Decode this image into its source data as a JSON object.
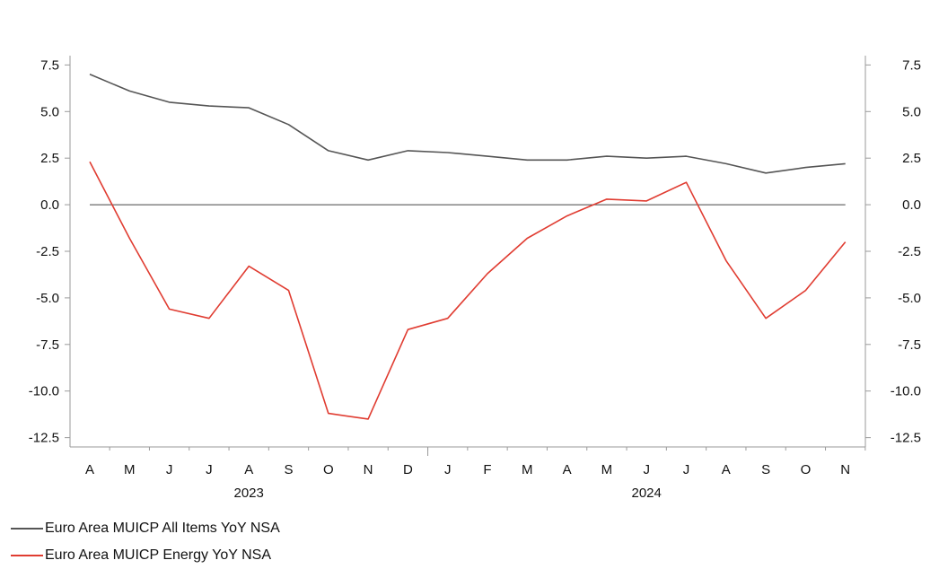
{
  "chart_data": {
    "type": "line",
    "x": [
      "A",
      "M",
      "J",
      "J",
      "A",
      "S",
      "O",
      "N",
      "D",
      "J",
      "F",
      "M",
      "A",
      "M",
      "J",
      "J",
      "A",
      "S",
      "O",
      "N"
    ],
    "year_labels": [
      {
        "label": "2023",
        "span": [
          0,
          8
        ]
      },
      {
        "label": "2024",
        "span": [
          9,
          19
        ]
      }
    ],
    "series": [
      {
        "name": "Euro Area MUICP All Items YoY NSA",
        "color": "#555555",
        "values": [
          7.0,
          6.1,
          5.5,
          5.3,
          5.2,
          4.3,
          2.9,
          2.4,
          2.9,
          2.8,
          2.6,
          2.4,
          2.4,
          2.6,
          2.5,
          2.6,
          2.2,
          1.7,
          2.0,
          2.2
        ]
      },
      {
        "name": "Euro Area MUICP Energy YoY NSA",
        "color": "#e03c31",
        "values": [
          2.3,
          -1.8,
          -5.6,
          -6.1,
          -3.3,
          -4.6,
          -11.2,
          -11.5,
          -6.7,
          -6.1,
          -3.7,
          -1.8,
          -0.6,
          0.3,
          0.2,
          1.2,
          -3.0,
          -6.1,
          -4.6,
          -2.0
        ]
      }
    ],
    "yticks": [
      7.5,
      5.0,
      2.5,
      0.0,
      -2.5,
      -5.0,
      -7.5,
      -10.0,
      -12.5
    ],
    "ylim": [
      -13.0,
      8.0
    ],
    "xlabel": "",
    "ylabel": "",
    "title": "",
    "grid": false,
    "zero_line": true,
    "legend_position": "bottom-left"
  }
}
